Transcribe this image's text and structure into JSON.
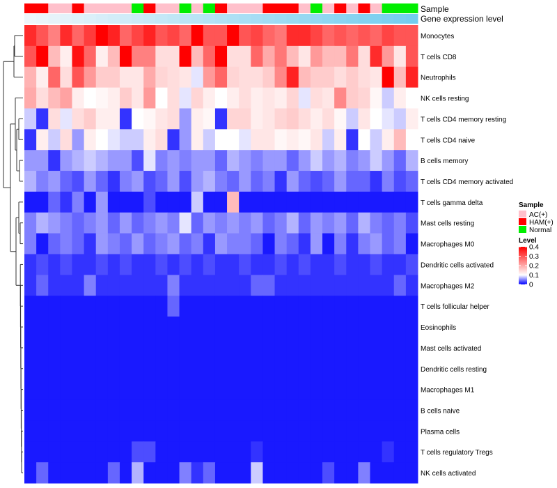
{
  "chart_data": {
    "type": "heatmap",
    "title": "",
    "annotation_tracks": [
      {
        "name": "Sample",
        "label": "Sample"
      },
      {
        "name": "Gene expression level",
        "label": "Gene expression level"
      }
    ],
    "sample_groups": [
      "HAM(+)",
      "HAM(+)",
      "AC(+)",
      "AC(+)",
      "HAM(+)",
      "AC(+)",
      "AC(+)",
      "AC(+)",
      "AC(+)",
      "Normal",
      "HAM(+)",
      "AC(+)",
      "AC(+)",
      "Normal",
      "AC(+)",
      "Normal",
      "HAM(+)",
      "AC(+)",
      "AC(+)",
      "AC(+)",
      "HAM(+)",
      "HAM(+)",
      "HAM(+)",
      "AC(+)",
      "Normal",
      "AC(+)",
      "HAM(+)",
      "AC(+)",
      "HAM(+)",
      "AC(+)",
      "Normal",
      "Normal",
      "Normal"
    ],
    "gene_expression_level": [
      0.0,
      0.03,
      0.06,
      0.09,
      0.12,
      0.15,
      0.18,
      0.21,
      0.24,
      0.27,
      0.3,
      0.33,
      0.36,
      0.39,
      0.42,
      0.45,
      0.48,
      0.51,
      0.54,
      0.57,
      0.6,
      0.63,
      0.66,
      0.69,
      0.72,
      0.75,
      0.78,
      0.81,
      0.84,
      0.87,
      0.9,
      0.93,
      0.96
    ],
    "rows": [
      "Monocytes",
      "T cells CD8",
      "Neutrophils",
      "NK cells resting",
      "T cells CD4 memory resting",
      "T cells CD4 naive",
      "B cells memory",
      "T cells CD4 memory activated",
      "T cells gamma delta",
      "Mast cells resting",
      "Macrophages M0",
      "Dendritic cells activated",
      "Macrophages M2",
      "T cells follicular helper",
      "Eosinophils",
      "Mast cells activated",
      "Dendritic cells resting",
      "Macrophages M1",
      "B cells naive",
      "Plasma cells",
      "T cells regulatory  Tregs",
      "NK cells activated"
    ],
    "values": [
      [
        0.35,
        0.3,
        0.25,
        0.35,
        0.28,
        0.33,
        0.4,
        0.36,
        0.28,
        0.32,
        0.36,
        0.3,
        0.32,
        0.28,
        0.4,
        0.3,
        0.3,
        0.4,
        0.3,
        0.32,
        0.28,
        0.26,
        0.35,
        0.35,
        0.32,
        0.28,
        0.3,
        0.28,
        0.3,
        0.28,
        0.32,
        0.3,
        0.3
      ],
      [
        0.3,
        0.4,
        0.18,
        0.12,
        0.38,
        0.28,
        0.12,
        0.18,
        0.4,
        0.25,
        0.25,
        0.14,
        0.14,
        0.4,
        0.18,
        0.28,
        0.4,
        0.14,
        0.14,
        0.28,
        0.2,
        0.26,
        0.18,
        0.13,
        0.22,
        0.18,
        0.18,
        0.26,
        0.14,
        0.35,
        0.22,
        0.13,
        0.3
      ],
      [
        0.19,
        0.12,
        0.28,
        0.14,
        0.3,
        0.22,
        0.16,
        0.16,
        0.13,
        0.13,
        0.2,
        0.15,
        0.14,
        0.13,
        0.09,
        0.22,
        0.28,
        0.15,
        0.14,
        0.14,
        0.16,
        0.24,
        0.36,
        0.18,
        0.16,
        0.16,
        0.14,
        0.16,
        0.14,
        0.13,
        0.4,
        0.18,
        0.36
      ],
      [
        0.2,
        0.14,
        0.18,
        0.21,
        0.12,
        0.1,
        0.11,
        0.12,
        0.16,
        0.13,
        0.22,
        0.1,
        0.14,
        0.09,
        0.15,
        0.12,
        0.1,
        0.12,
        0.14,
        0.12,
        0.13,
        0.12,
        0.15,
        0.09,
        0.14,
        0.13,
        0.24,
        0.16,
        0.15,
        0.11,
        0.08,
        0.12,
        0.1
      ],
      [
        0.08,
        0.02,
        0.14,
        0.09,
        0.14,
        0.16,
        0.12,
        0.12,
        0.02,
        0.1,
        0.11,
        0.13,
        0.14,
        0.06,
        0.12,
        0.11,
        0.02,
        0.15,
        0.15,
        0.12,
        0.13,
        0.15,
        0.16,
        0.14,
        0.12,
        0.14,
        0.11,
        0.08,
        0.13,
        0.1,
        0.09,
        0.08,
        0.12
      ],
      [
        0.02,
        0.12,
        0.08,
        0.14,
        0.06,
        0.12,
        0.1,
        0.09,
        0.08,
        0.08,
        0.12,
        0.14,
        0.02,
        0.06,
        0.12,
        0.08,
        0.1,
        0.1,
        0.09,
        0.13,
        0.13,
        0.11,
        0.12,
        0.11,
        0.13,
        0.08,
        0.12,
        0.02,
        0.1,
        0.08,
        0.12,
        0.18,
        0.1
      ],
      [
        0.06,
        0.06,
        0.02,
        0.06,
        0.07,
        0.08,
        0.07,
        0.06,
        0.06,
        0.03,
        0.09,
        0.05,
        0.06,
        0.05,
        0.06,
        0.06,
        0.04,
        0.07,
        0.06,
        0.05,
        0.06,
        0.06,
        0.04,
        0.06,
        0.08,
        0.06,
        0.07,
        0.05,
        0.06,
        0.08,
        0.06,
        0.04,
        0.07
      ],
      [
        0.07,
        0.05,
        0.06,
        0.04,
        0.03,
        0.06,
        0.04,
        0.02,
        0.05,
        0.06,
        0.03,
        0.04,
        0.06,
        0.03,
        0.06,
        0.07,
        0.05,
        0.04,
        0.06,
        0.04,
        0.05,
        0.02,
        0.06,
        0.04,
        0.03,
        0.04,
        0.06,
        0.04,
        0.04,
        0.02,
        0.05,
        0.03,
        0.04
      ],
      [
        0.01,
        0.01,
        0.04,
        0.02,
        0.05,
        0.01,
        0.06,
        0.01,
        0.01,
        0.01,
        0.03,
        0.01,
        0.01,
        0.01,
        0.08,
        0.01,
        0.01,
        0.18,
        0.01,
        0.01,
        0.01,
        0.01,
        0.01,
        0.01,
        0.01,
        0.01,
        0.01,
        0.01,
        0.01,
        0.01,
        0.01,
        0.01,
        0.01
      ],
      [
        0.05,
        0.07,
        0.06,
        0.05,
        0.04,
        0.05,
        0.06,
        0.04,
        0.06,
        0.04,
        0.05,
        0.06,
        0.05,
        0.09,
        0.04,
        0.06,
        0.05,
        0.06,
        0.05,
        0.06,
        0.04,
        0.05,
        0.07,
        0.04,
        0.06,
        0.05,
        0.06,
        0.04,
        0.07,
        0.05,
        0.04,
        0.05,
        0.03
      ],
      [
        0.05,
        0.01,
        0.04,
        0.05,
        0.04,
        0.02,
        0.06,
        0.05,
        0.04,
        0.06,
        0.04,
        0.05,
        0.06,
        0.04,
        0.05,
        0.02,
        0.06,
        0.05,
        0.05,
        0.04,
        0.01,
        0.05,
        0.04,
        0.02,
        0.06,
        0.01,
        0.05,
        0.02,
        0.05,
        0.06,
        0.04,
        0.05,
        0.01
      ],
      [
        0.02,
        0.03,
        0.02,
        0.03,
        0.02,
        0.02,
        0.03,
        0.02,
        0.03,
        0.02,
        0.02,
        0.03,
        0.02,
        0.03,
        0.02,
        0.03,
        0.02,
        0.02,
        0.03,
        0.02,
        0.02,
        0.03,
        0.02,
        0.03,
        0.02,
        0.02,
        0.03,
        0.02,
        0.02,
        0.03,
        0.02,
        0.02,
        0.03
      ],
      [
        0.02,
        0.04,
        0.02,
        0.02,
        0.02,
        0.05,
        0.02,
        0.02,
        0.02,
        0.02,
        0.02,
        0.02,
        0.05,
        0.02,
        0.02,
        0.02,
        0.02,
        0.02,
        0.02,
        0.04,
        0.04,
        0.02,
        0.02,
        0.02,
        0.02,
        0.02,
        0.02,
        0.02,
        0.02,
        0.02,
        0.02,
        0.04,
        0.02
      ],
      [
        0.01,
        0.01,
        0.01,
        0.01,
        0.01,
        0.01,
        0.01,
        0.01,
        0.01,
        0.01,
        0.01,
        0.01,
        0.04,
        0.01,
        0.01,
        0.01,
        0.01,
        0.01,
        0.01,
        0.01,
        0.01,
        0.01,
        0.01,
        0.01,
        0.01,
        0.01,
        0.01,
        0.01,
        0.01,
        0.01,
        0.01,
        0.01,
        0.01
      ],
      [
        0.01,
        0.01,
        0.01,
        0.01,
        0.01,
        0.01,
        0.01,
        0.01,
        0.01,
        0.01,
        0.01,
        0.01,
        0.01,
        0.01,
        0.01,
        0.01,
        0.01,
        0.01,
        0.01,
        0.01,
        0.01,
        0.01,
        0.01,
        0.01,
        0.01,
        0.01,
        0.01,
        0.01,
        0.01,
        0.01,
        0.01,
        0.01,
        0.01
      ],
      [
        0.01,
        0.01,
        0.01,
        0.01,
        0.01,
        0.01,
        0.01,
        0.01,
        0.01,
        0.01,
        0.01,
        0.01,
        0.01,
        0.01,
        0.01,
        0.01,
        0.01,
        0.01,
        0.01,
        0.01,
        0.01,
        0.01,
        0.01,
        0.01,
        0.01,
        0.01,
        0.01,
        0.01,
        0.01,
        0.01,
        0.01,
        0.01,
        0.01
      ],
      [
        0.01,
        0.01,
        0.01,
        0.01,
        0.01,
        0.01,
        0.01,
        0.01,
        0.01,
        0.01,
        0.01,
        0.01,
        0.01,
        0.01,
        0.01,
        0.01,
        0.01,
        0.01,
        0.01,
        0.01,
        0.01,
        0.01,
        0.01,
        0.01,
        0.01,
        0.01,
        0.01,
        0.01,
        0.01,
        0.01,
        0.01,
        0.01,
        0.01
      ],
      [
        0.01,
        0.01,
        0.01,
        0.01,
        0.01,
        0.01,
        0.01,
        0.01,
        0.01,
        0.01,
        0.01,
        0.01,
        0.01,
        0.01,
        0.01,
        0.01,
        0.01,
        0.01,
        0.01,
        0.01,
        0.01,
        0.01,
        0.01,
        0.01,
        0.01,
        0.01,
        0.01,
        0.01,
        0.01,
        0.01,
        0.01,
        0.01,
        0.01
      ],
      [
        0.01,
        0.01,
        0.01,
        0.01,
        0.01,
        0.01,
        0.01,
        0.01,
        0.01,
        0.01,
        0.01,
        0.01,
        0.01,
        0.01,
        0.01,
        0.01,
        0.01,
        0.01,
        0.01,
        0.01,
        0.01,
        0.01,
        0.01,
        0.01,
        0.01,
        0.01,
        0.01,
        0.01,
        0.01,
        0.01,
        0.01,
        0.01,
        0.01
      ],
      [
        0.01,
        0.01,
        0.01,
        0.01,
        0.01,
        0.01,
        0.01,
        0.01,
        0.01,
        0.01,
        0.01,
        0.01,
        0.01,
        0.01,
        0.01,
        0.01,
        0.01,
        0.01,
        0.01,
        0.01,
        0.01,
        0.01,
        0.01,
        0.01,
        0.01,
        0.01,
        0.01,
        0.01,
        0.01,
        0.01,
        0.01,
        0.01,
        0.01
      ],
      [
        0.01,
        0.01,
        0.01,
        0.01,
        0.01,
        0.01,
        0.01,
        0.01,
        0.01,
        0.03,
        0.03,
        0.01,
        0.01,
        0.01,
        0.01,
        0.01,
        0.01,
        0.01,
        0.01,
        0.02,
        0.01,
        0.01,
        0.01,
        0.01,
        0.01,
        0.01,
        0.01,
        0.01,
        0.01,
        0.01,
        0.02,
        0.01,
        0.01
      ],
      [
        0.01,
        0.04,
        0.01,
        0.01,
        0.01,
        0.01,
        0.01,
        0.04,
        0.01,
        0.07,
        0.01,
        0.01,
        0.01,
        0.05,
        0.02,
        0.04,
        0.01,
        0.01,
        0.01,
        0.08,
        0.01,
        0.01,
        0.01,
        0.01,
        0.01,
        0.03,
        0.01,
        0.01,
        0.05,
        0.01,
        0.01,
        0.01,
        0.01
      ]
    ],
    "legends": {
      "sample": {
        "title": "Sample",
        "entries": [
          {
            "label": "AC(+)",
            "color": "#ffc0cb"
          },
          {
            "label": "HAM(+)",
            "color": "#ff0000"
          },
          {
            "label": "Normal",
            "color": "#00ee00"
          }
        ]
      },
      "level": {
        "title": "Level",
        "ticks": [
          {
            "value": 0.4,
            "label": "0.4"
          },
          {
            "value": 0.3,
            "label": "0.3"
          },
          {
            "value": 0.2,
            "label": "0.2"
          },
          {
            "value": 0.1,
            "label": "0.1"
          },
          {
            "value": 0,
            "label": "0"
          }
        ]
      }
    },
    "color_scale": {
      "min": 0,
      "mid": 0.1,
      "max": 0.4,
      "low": "#0000ff",
      "midColor": "#ffffff",
      "high": "#ff0000"
    },
    "gene_color_scale": {
      "low": "#eef6fb",
      "high": "#6fcbee"
    }
  }
}
